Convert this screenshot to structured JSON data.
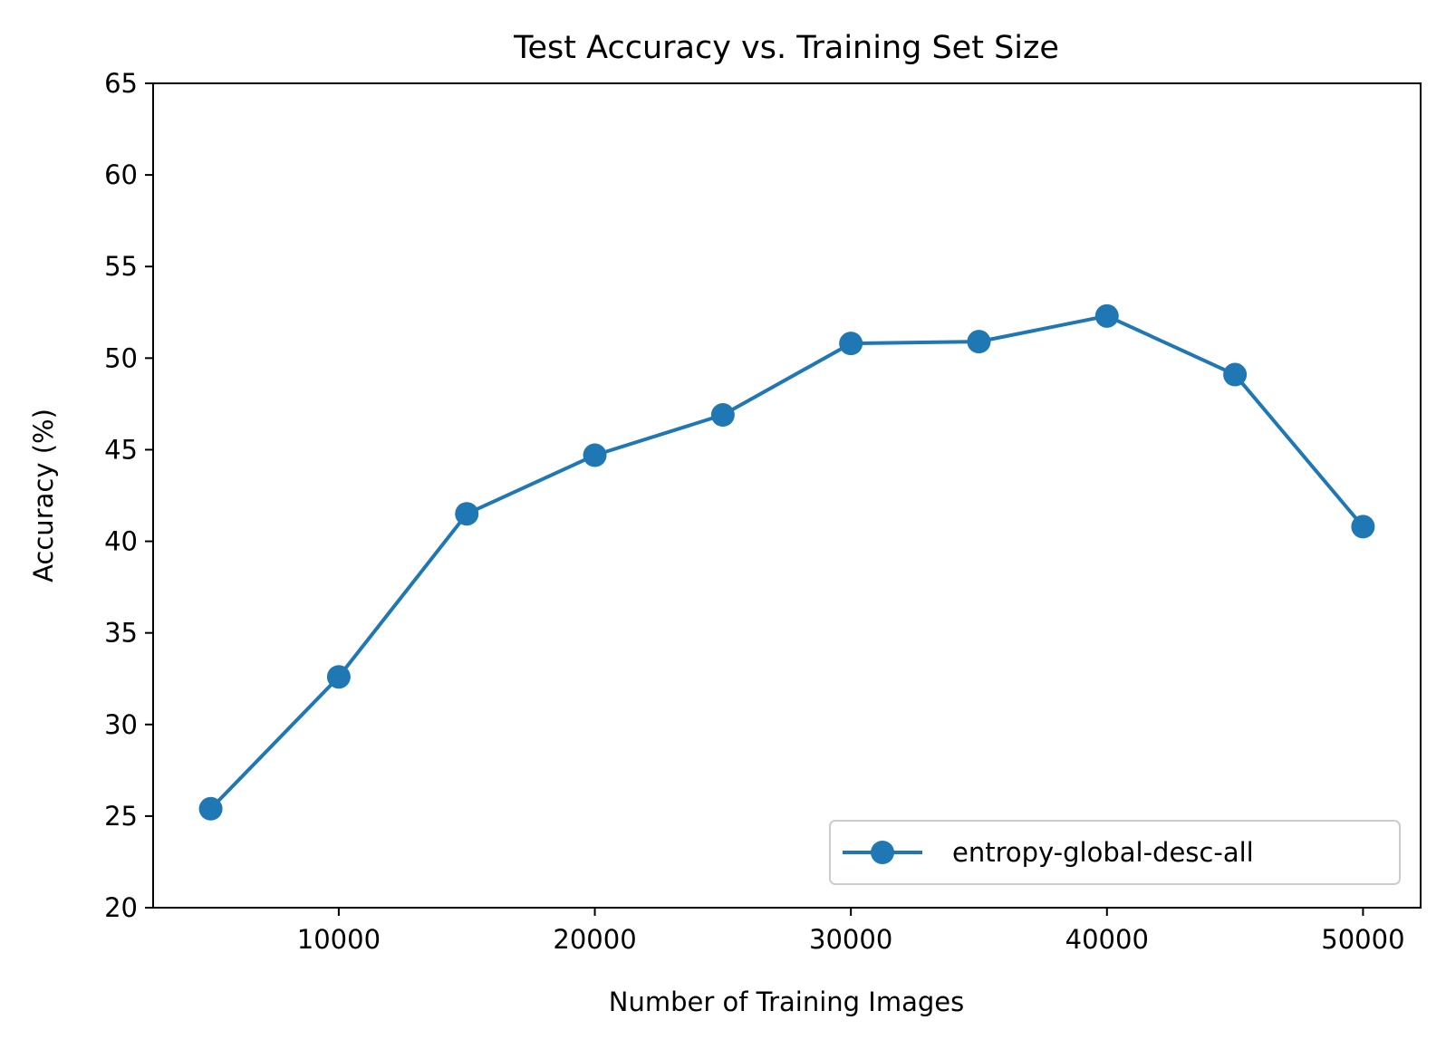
{
  "chart_data": {
    "type": "line",
    "title": "Test Accuracy vs. Training Set Size",
    "xlabel": "Number of Training Images",
    "ylabel": "Accuracy (%)",
    "xlim": [
      2750,
      52250
    ],
    "ylim": [
      20,
      65
    ],
    "xticks": [
      10000,
      20000,
      30000,
      40000,
      50000
    ],
    "xtick_labels": [
      "10000",
      "20000",
      "30000",
      "40000",
      "50000"
    ],
    "yticks": [
      20,
      25,
      30,
      35,
      40,
      45,
      50,
      55,
      60,
      65
    ],
    "ytick_labels": [
      "20",
      "25",
      "30",
      "35",
      "40",
      "45",
      "50",
      "55",
      "60",
      "65"
    ],
    "grid": false,
    "legend_position": "lower-right",
    "series": [
      {
        "name": "entropy-global-desc-all",
        "color": "#1f77b4",
        "marker": "circle",
        "x": [
          5000,
          10000,
          15000,
          20000,
          25000,
          30000,
          35000,
          40000,
          45000,
          50000
        ],
        "y": [
          25.4,
          32.6,
          41.5,
          44.7,
          46.9,
          50.8,
          50.9,
          52.3,
          49.1,
          40.8
        ]
      }
    ]
  }
}
